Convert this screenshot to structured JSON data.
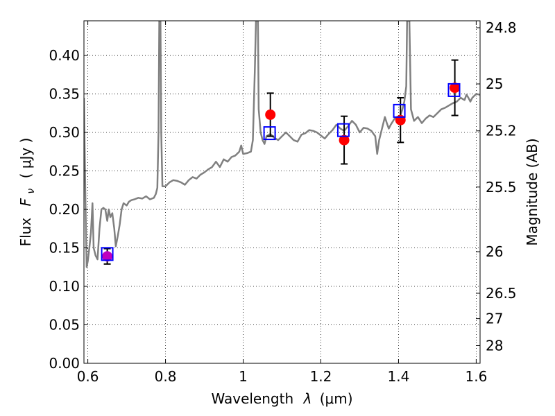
{
  "chart_data": {
    "type": "scatter",
    "xlabel": "Wavelength",
    "xlabel_symbol": "λ",
    "xlabel_unit": "(μm)",
    "ylabel": "Flux",
    "ylabel_symbol": "F",
    "ylabel_symbol_sub": "ν",
    "ylabel_unit": "( μJy )",
    "y2label": "Magnitude (AB)",
    "xlim": [
      0.59,
      1.61
    ],
    "ylim": [
      0.0,
      0.445
    ],
    "grid": true,
    "x_ticks": [
      0.6,
      0.8,
      1.0,
      1.2,
      1.4,
      1.6
    ],
    "x_tick_labels": [
      "0.6",
      "0.8",
      "1",
      "1.2",
      "1.4",
      "1.6"
    ],
    "y_ticks": [
      0.0,
      0.05,
      0.1,
      0.15,
      0.2,
      0.25,
      0.3,
      0.35,
      0.4
    ],
    "y_tick_labels": [
      "0.00",
      "0.05",
      "0.10",
      "0.15",
      "0.20",
      "0.25",
      "0.30",
      "0.35",
      "0.40"
    ],
    "y2_ticks": [
      {
        "label": "24.8",
        "flux": 0.436
      },
      {
        "label": "25",
        "flux": 0.363
      },
      {
        "label": "25.2",
        "flux": 0.302
      },
      {
        "label": "25.5",
        "flux": 0.229
      },
      {
        "label": "26",
        "flux": 0.145
      },
      {
        "label": "26.5",
        "flux": 0.091
      },
      {
        "label": "27",
        "flux": 0.058
      },
      {
        "label": "28",
        "flux": 0.023
      }
    ],
    "series": [
      {
        "style": "line",
        "color": "#808080",
        "points": [
          [
            0.59,
            0.345
          ],
          [
            0.594,
            0.21
          ],
          [
            0.597,
            0.125
          ],
          [
            0.6,
            0.133
          ],
          [
            0.604,
            0.15
          ],
          [
            0.608,
            0.17
          ],
          [
            0.612,
            0.208
          ],
          [
            0.615,
            0.15
          ],
          [
            0.62,
            0.14
          ],
          [
            0.625,
            0.135
          ],
          [
            0.63,
            0.175
          ],
          [
            0.635,
            0.2
          ],
          [
            0.64,
            0.202
          ],
          [
            0.645,
            0.2
          ],
          [
            0.65,
            0.185
          ],
          [
            0.654,
            0.2
          ],
          [
            0.658,
            0.19
          ],
          [
            0.663,
            0.195
          ],
          [
            0.668,
            0.175
          ],
          [
            0.672,
            0.152
          ],
          [
            0.677,
            0.165
          ],
          [
            0.682,
            0.18
          ],
          [
            0.687,
            0.2
          ],
          [
            0.692,
            0.208
          ],
          [
            0.7,
            0.205
          ],
          [
            0.706,
            0.21
          ],
          [
            0.712,
            0.212
          ],
          [
            0.72,
            0.213
          ],
          [
            0.73,
            0.215
          ],
          [
            0.74,
            0.214
          ],
          [
            0.75,
            0.217
          ],
          [
            0.76,
            0.213
          ],
          [
            0.77,
            0.215
          ],
          [
            0.775,
            0.22
          ],
          [
            0.779,
            0.228
          ],
          [
            0.782,
            0.3
          ],
          [
            0.784,
            0.445
          ],
          [
            0.787,
            0.445
          ],
          [
            0.789,
            0.3
          ],
          [
            0.792,
            0.23
          ],
          [
            0.8,
            0.23
          ],
          [
            0.81,
            0.235
          ],
          [
            0.82,
            0.238
          ],
          [
            0.83,
            0.237
          ],
          [
            0.84,
            0.235
          ],
          [
            0.85,
            0.232
          ],
          [
            0.86,
            0.238
          ],
          [
            0.87,
            0.242
          ],
          [
            0.88,
            0.24
          ],
          [
            0.89,
            0.245
          ],
          [
            0.9,
            0.248
          ],
          [
            0.91,
            0.252
          ],
          [
            0.92,
            0.255
          ],
          [
            0.93,
            0.262
          ],
          [
            0.94,
            0.255
          ],
          [
            0.95,
            0.265
          ],
          [
            0.96,
            0.262
          ],
          [
            0.97,
            0.268
          ],
          [
            0.98,
            0.27
          ],
          [
            0.99,
            0.275
          ],
          [
            0.995,
            0.283
          ],
          [
            1.0,
            0.272
          ],
          [
            1.01,
            0.273
          ],
          [
            1.02,
            0.275
          ],
          [
            1.025,
            0.29
          ],
          [
            1.03,
            0.38
          ],
          [
            1.033,
            0.445
          ],
          [
            1.038,
            0.445
          ],
          [
            1.04,
            0.33
          ],
          [
            1.045,
            0.3
          ],
          [
            1.05,
            0.29
          ],
          [
            1.055,
            0.285
          ],
          [
            1.06,
            0.295
          ],
          [
            1.07,
            0.298
          ],
          [
            1.08,
            0.293
          ],
          [
            1.09,
            0.29
          ],
          [
            1.1,
            0.295
          ],
          [
            1.11,
            0.3
          ],
          [
            1.12,
            0.295
          ],
          [
            1.13,
            0.29
          ],
          [
            1.14,
            0.288
          ],
          [
            1.15,
            0.297
          ],
          [
            1.16,
            0.299
          ],
          [
            1.17,
            0.303
          ],
          [
            1.18,
            0.302
          ],
          [
            1.19,
            0.3
          ],
          [
            1.2,
            0.296
          ],
          [
            1.21,
            0.292
          ],
          [
            1.22,
            0.298
          ],
          [
            1.23,
            0.303
          ],
          [
            1.24,
            0.31
          ],
          [
            1.25,
            0.305
          ],
          [
            1.26,
            0.302
          ],
          [
            1.27,
            0.308
          ],
          [
            1.28,
            0.315
          ],
          [
            1.29,
            0.31
          ],
          [
            1.3,
            0.3
          ],
          [
            1.31,
            0.306
          ],
          [
            1.32,
            0.305
          ],
          [
            1.33,
            0.302
          ],
          [
            1.34,
            0.295
          ],
          [
            1.345,
            0.272
          ],
          [
            1.35,
            0.29
          ],
          [
            1.36,
            0.31
          ],
          [
            1.365,
            0.32
          ],
          [
            1.37,
            0.312
          ],
          [
            1.375,
            0.305
          ],
          [
            1.38,
            0.31
          ],
          [
            1.39,
            0.318
          ],
          [
            1.395,
            0.32
          ],
          [
            1.4,
            0.315
          ],
          [
            1.405,
            0.322
          ],
          [
            1.41,
            0.33
          ],
          [
            1.415,
            0.34
          ],
          [
            1.42,
            0.36
          ],
          [
            1.422,
            0.445
          ],
          [
            1.428,
            0.445
          ],
          [
            1.432,
            0.33
          ],
          [
            1.44,
            0.315
          ],
          [
            1.45,
            0.32
          ],
          [
            1.46,
            0.312
          ],
          [
            1.47,
            0.318
          ],
          [
            1.48,
            0.322
          ],
          [
            1.49,
            0.32
          ],
          [
            1.5,
            0.325
          ],
          [
            1.51,
            0.33
          ],
          [
            1.52,
            0.332
          ],
          [
            1.53,
            0.335
          ],
          [
            1.54,
            0.338
          ],
          [
            1.55,
            0.34
          ],
          [
            1.56,
            0.345
          ],
          [
            1.57,
            0.342
          ],
          [
            1.575,
            0.349
          ],
          [
            1.58,
            0.345
          ],
          [
            1.585,
            0.34
          ],
          [
            1.59,
            0.345
          ],
          [
            1.6,
            0.35
          ],
          [
            1.61,
            0.349
          ]
        ]
      },
      {
        "style": "filled-circle",
        "color": "#ff0000",
        "points": [
          {
            "x": 1.07,
            "y": 0.323,
            "yerr": 0.028
          },
          {
            "x": 1.26,
            "y": 0.29,
            "yerr": 0.031
          },
          {
            "x": 1.405,
            "y": 0.316,
            "yerr": 0.029
          },
          {
            "x": 1.545,
            "y": 0.358,
            "yerr": 0.036
          }
        ]
      },
      {
        "style": "filled-circle",
        "color": "#bf00bf",
        "points": [
          {
            "x": 0.65,
            "y": 0.139,
            "yerr": 0.01
          }
        ]
      },
      {
        "style": "open-square",
        "color": "#0000ff",
        "points": [
          {
            "x": 0.65,
            "y": 0.142
          },
          {
            "x": 1.068,
            "y": 0.299
          },
          {
            "x": 1.258,
            "y": 0.303
          },
          {
            "x": 1.402,
            "y": 0.328
          },
          {
            "x": 1.543,
            "y": 0.355
          }
        ]
      }
    ]
  }
}
